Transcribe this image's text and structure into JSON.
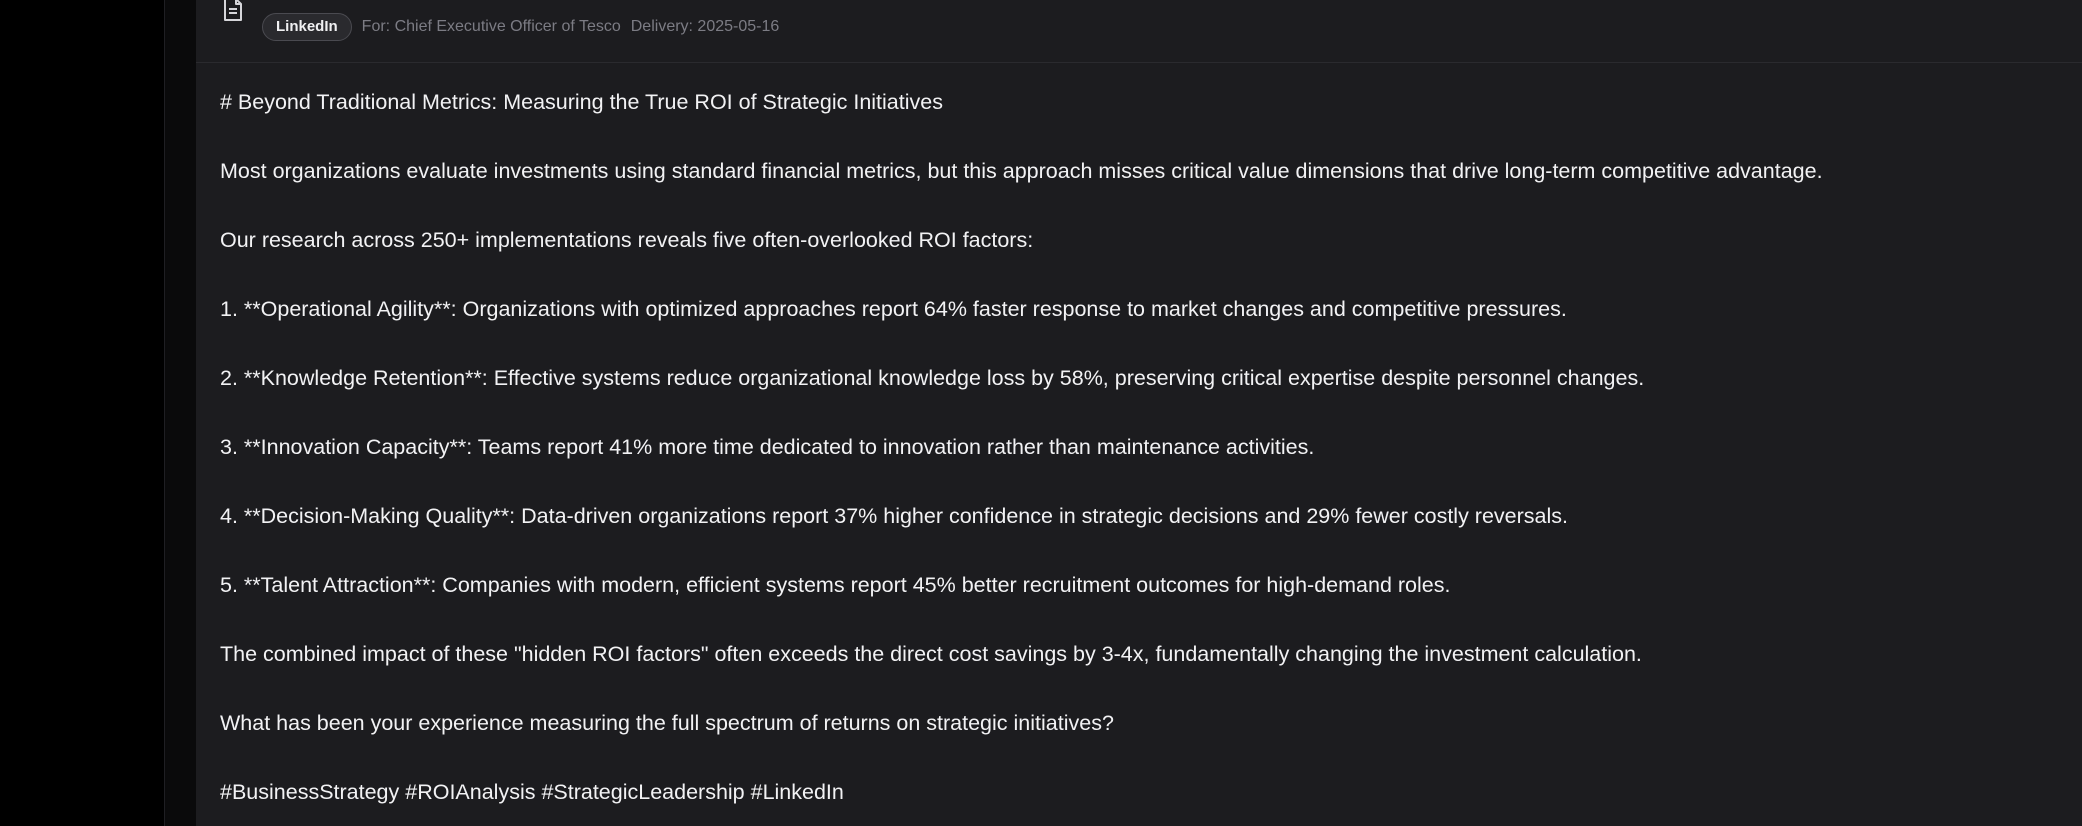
{
  "header": {
    "platform_badge": "LinkedIn",
    "audience": "For: Chief Executive Officer of Tesco",
    "delivery": "Delivery: 2025-05-16"
  },
  "post": {
    "lines": [
      "# Beyond Traditional Metrics: Measuring the True ROI of Strategic Initiatives",
      "Most organizations evaluate investments using standard financial metrics, but this approach misses critical value dimensions that drive long-term competitive advantage.",
      "Our research across 250+ implementations reveals five often-overlooked ROI factors:",
      "1. **Operational Agility**: Organizations with optimized approaches report 64% faster response to market changes and competitive pressures.",
      "2. **Knowledge Retention**: Effective systems reduce organizational knowledge loss by 58%, preserving critical expertise despite personnel changes.",
      "3. **Innovation Capacity**: Teams report 41% more time dedicated to innovation rather than maintenance activities.",
      "4. **Decision-Making Quality**: Data-driven organizations report 37% higher confidence in strategic decisions and 29% fewer costly reversals.",
      "5. **Talent Attraction**: Companies with modern, efficient systems report 45% better recruitment outcomes for high-demand roles.",
      "The combined impact of these \"hidden ROI factors\" often exceeds the direct cost savings by 3-4x, fundamentally changing the investment calculation.",
      "What has been your experience measuring the full spectrum of returns on strategic initiatives?",
      "#BusinessStrategy #ROIAnalysis #StrategicLeadership #LinkedIn"
    ]
  },
  "icons": {
    "document": "document-icon"
  }
}
